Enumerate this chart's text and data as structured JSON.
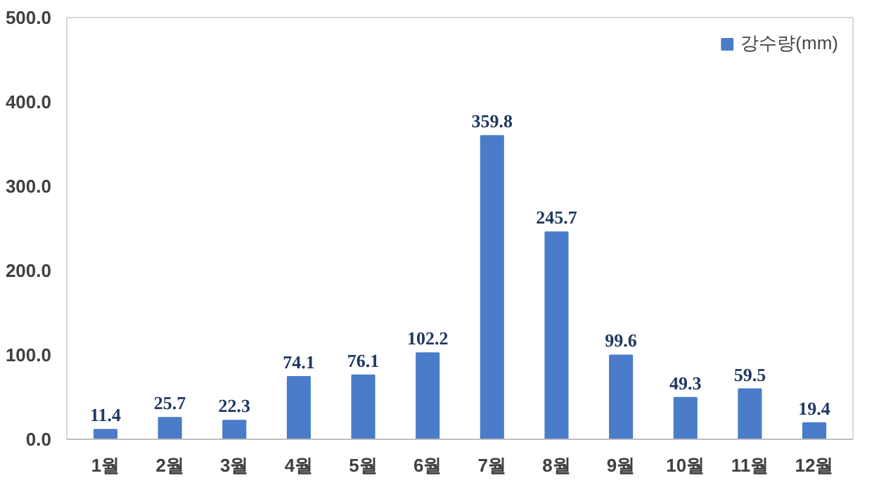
{
  "chart_data": {
    "type": "bar",
    "categories": [
      "1월",
      "2월",
      "3월",
      "4월",
      "5월",
      "6월",
      "7월",
      "8월",
      "9월",
      "10월",
      "11월",
      "12월"
    ],
    "series": [
      {
        "name": "강수량(mm)",
        "color": "#4a7cc9",
        "values": [
          11.4,
          25.7,
          22.3,
          74.1,
          76.1,
          102.2,
          359.8,
          245.7,
          99.6,
          49.3,
          59.5,
          19.4
        ]
      }
    ],
    "ylim": [
      0,
      500
    ],
    "yticks": [
      {
        "value": 0,
        "label": "0.0"
      },
      {
        "value": 100,
        "label": "100.0"
      },
      {
        "value": 200,
        "label": "200.0"
      },
      {
        "value": 300,
        "label": "300.0"
      },
      {
        "value": 400,
        "label": "400.0"
      },
      {
        "value": 500,
        "label": "500.0"
      }
    ],
    "data_labels": true,
    "grid": false,
    "legend": "top right"
  }
}
